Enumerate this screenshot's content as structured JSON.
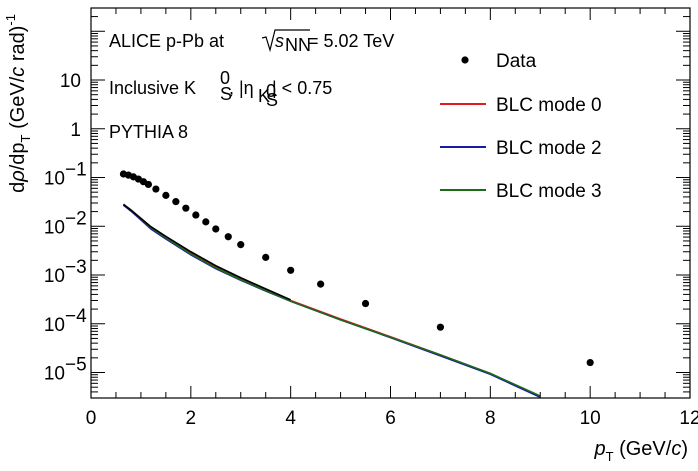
{
  "chart_data": {
    "type": "scatter",
    "xlim": [
      0,
      12
    ],
    "ylim": [
      3e-06,
      300
    ],
    "yscale": "log",
    "grid": false,
    "x_ticks": [
      0,
      2,
      4,
      6,
      8,
      10,
      12
    ],
    "y_tick_labels": [
      {
        "value": 10,
        "label": "10"
      },
      {
        "value": 1,
        "label": "1"
      },
      {
        "value": 0.1,
        "label": "10",
        "exp": "−1"
      },
      {
        "value": 0.01,
        "label": "10",
        "exp": "−2"
      },
      {
        "value": 0.001,
        "label": "10",
        "exp": "−3"
      },
      {
        "value": 0.0001,
        "label": "10",
        "exp": "−4"
      },
      {
        "value": 1e-05,
        "label": "10",
        "exp": "−5"
      }
    ],
    "xlabel": {
      "sym": "p",
      "sub": "T",
      "unit": " (GeV/",
      "unit_c": "c",
      "close": ")"
    },
    "ylabel": {
      "d": "d",
      "rho": "ρ",
      "mid": "/dp",
      "sub": "T",
      "unit": " (GeV/",
      "unit_c": "c",
      "rad": " rad)",
      "top": "-1"
    },
    "annotations": {
      "line1_a": "ALICE p-Pb at ",
      "line1_sqrt": "s",
      "line1_sub": "NN",
      "line1_b": " = 5.02 TeV",
      "line2_a": "Inclusive K",
      "line2_sup": "0",
      "line2_sub": "S",
      "line2_b": ", |η",
      "line2_c": "| < 0.75",
      "line2_eta_sub": "K",
      "line2_eta_sub_sup": "0",
      "line2_eta_sub_sub": "S",
      "line3": "PYTHIA 8"
    },
    "legend_position": "top-right",
    "legend": [
      {
        "label": "Data",
        "kind": "marker",
        "color": "#000000"
      },
      {
        "label": "BLC mode 0",
        "kind": "line",
        "color": "#e41a1c"
      },
      {
        "label": "BLC mode 2",
        "kind": "line",
        "color": "#1a1aa6"
      },
      {
        "label": "BLC mode 3",
        "kind": "line",
        "color": "#1a6b1a"
      }
    ],
    "series": [
      {
        "name": "Data",
        "kind": "marker",
        "color": "#000000",
        "x": [
          0.65,
          0.75,
          0.85,
          0.95,
          1.05,
          1.15,
          1.3,
          1.5,
          1.7,
          1.9,
          2.1,
          2.3,
          2.5,
          2.75,
          3.0,
          3.5,
          4.0,
          4.6,
          5.5,
          7.0,
          10.0
        ],
        "y": [
          0.118,
          0.112,
          0.103,
          0.093,
          0.082,
          0.072,
          0.058,
          0.043,
          0.032,
          0.0235,
          0.017,
          0.0123,
          0.0088,
          0.0061,
          0.0042,
          0.0023,
          0.00125,
          0.00065,
          0.00026,
          8.5e-05,
          1.6e-05
        ]
      },
      {
        "name": "BLC mode 0",
        "kind": "line",
        "color": "#e41a1c",
        "x": [
          0.65,
          0.8,
          1.0,
          1.2,
          1.5,
          2.0,
          2.5,
          3.0,
          3.5,
          4.0,
          5.0,
          6.0,
          7.0,
          8.0,
          9.0
        ],
        "y": [
          0.028,
          0.021,
          0.014,
          0.0095,
          0.006,
          0.0028,
          0.00145,
          0.00082,
          0.00049,
          0.0003,
          0.000125,
          5.4e-05,
          2.3e-05,
          9.5e-06,
          3.2e-06
        ]
      },
      {
        "name": "BLC mode 2",
        "kind": "line",
        "color": "#1a1aa6",
        "x": [
          0.65,
          0.8,
          1.0,
          1.2,
          1.5,
          2.0,
          2.5,
          3.0,
          3.5,
          4.0,
          5.0,
          6.0,
          7.0,
          8.0,
          9.0
        ],
        "y": [
          0.027,
          0.0205,
          0.0135,
          0.0088,
          0.0055,
          0.0026,
          0.00135,
          0.00078,
          0.00047,
          0.00029,
          0.00012,
          5.2e-05,
          2.2e-05,
          9.2e-06,
          3.1e-06
        ]
      },
      {
        "name": "BLC mode 3",
        "kind": "line",
        "color": "#1a6b1a",
        "x": [
          0.65,
          0.8,
          1.0,
          1.2,
          1.5,
          2.0,
          2.5,
          3.0,
          3.5,
          4.0,
          5.0,
          6.0,
          7.0,
          8.0,
          9.0
        ],
        "y": [
          0.0285,
          0.0215,
          0.0143,
          0.0093,
          0.0058,
          0.0027,
          0.0014,
          0.0008,
          0.00048,
          0.00029,
          0.00012,
          5.3e-05,
          2.3e-05,
          9.6e-06,
          3.3e-06
        ]
      },
      {
        "name": "Black curve",
        "kind": "line",
        "color": "#000000",
        "x": [
          0.65,
          0.8,
          1.0,
          1.2,
          1.5,
          2.0,
          2.5,
          3.0,
          3.5,
          4.0
        ],
        "y": [
          0.028,
          0.0215,
          0.0145,
          0.0098,
          0.0062,
          0.003,
          0.00155,
          0.00088,
          0.00052,
          0.00031
        ]
      }
    ]
  }
}
